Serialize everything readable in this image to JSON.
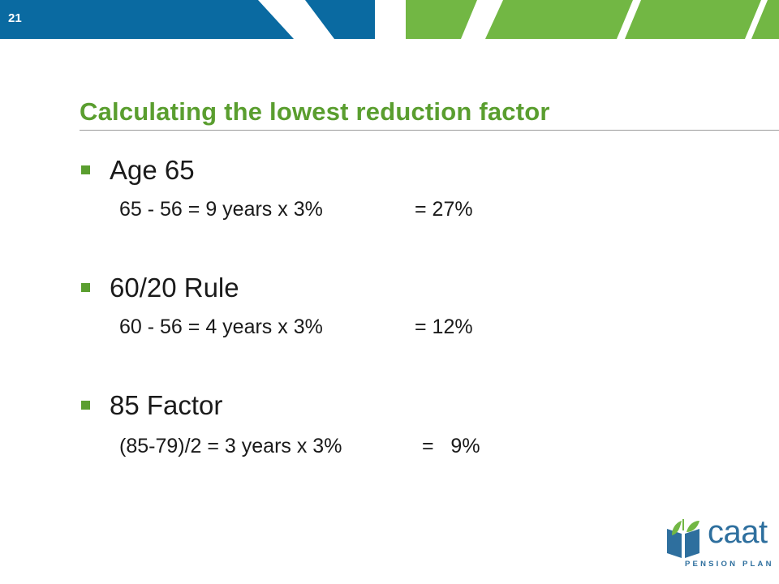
{
  "slide_number": "21",
  "title": "Calculating  the lowest reduction factor",
  "items": [
    {
      "heading": "Age 65",
      "calc_left": "65 - 56 = 9 years x 3%",
      "calc_right": "= 27%"
    },
    {
      "heading": "60/20 Rule",
      "calc_left": "60 - 56 = 4 years x 3%",
      "calc_right": "= 12%"
    },
    {
      "heading": "85 Factor",
      "calc_left": "(85-79)/2 = 3 years x 3%",
      "calc_right": "=   9%"
    }
  ],
  "logo": {
    "word": "caat",
    "subtitle": "PENSION PLAN"
  },
  "colors": {
    "banner_blue": "#0a6aa1",
    "banner_green": "#72b744",
    "title_green": "#5a9e2f",
    "logo_blue": "#2e6f9e"
  }
}
